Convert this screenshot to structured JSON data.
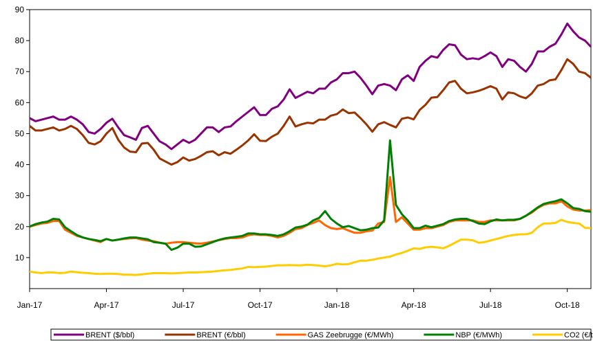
{
  "chart_data": {
    "type": "line",
    "categories": [
      "Jan-17",
      null,
      null,
      null,
      null,
      null,
      null,
      null,
      null,
      null,
      null,
      null,
      null,
      "Apr-17",
      null,
      null,
      null,
      null,
      null,
      null,
      null,
      null,
      null,
      null,
      null,
      null,
      "Jul-17",
      null,
      null,
      null,
      null,
      null,
      null,
      null,
      null,
      null,
      null,
      null,
      null,
      "Oct-17",
      null,
      null,
      null,
      null,
      null,
      null,
      null,
      null,
      null,
      null,
      null,
      null,
      "Jan-18",
      null,
      null,
      null,
      null,
      null,
      null,
      null,
      null,
      null,
      null,
      null,
      null,
      "Apr-18",
      null,
      null,
      null,
      null,
      null,
      null,
      null,
      null,
      null,
      null,
      null,
      null,
      "Jul-18",
      null,
      null,
      null,
      null,
      null,
      null,
      null,
      null,
      null,
      null,
      null,
      null,
      "Oct-18",
      null,
      null,
      null,
      null
    ],
    "ylim": [
      0,
      90
    ],
    "yticks": [
      10,
      20,
      30,
      40,
      50,
      60,
      70,
      80,
      90
    ],
    "grid": false,
    "series": [
      {
        "name": "BRENT ($/bbl)",
        "color": "#800080",
        "values": [
          55,
          54,
          54.5,
          55,
          55.5,
          54.5,
          54.5,
          55.5,
          54.5,
          53,
          50.5,
          50,
          51.5,
          53.5,
          54.8,
          52,
          49.5,
          48.8,
          48,
          51.8,
          52.5,
          50,
          47.5,
          46.5,
          45,
          46.5,
          48,
          47,
          48,
          50,
          52,
          52,
          50.5,
          52,
          52.3,
          54,
          55.5,
          57,
          58.5,
          56,
          56,
          58,
          58.8,
          61,
          64.3,
          61.5,
          62.5,
          63.5,
          63,
          64.5,
          64.5,
          66.5,
          67.5,
          69.5,
          69.5,
          70,
          68,
          65.5,
          62.7,
          65.5,
          66,
          65.5,
          64,
          67.5,
          68.8,
          67,
          71.5,
          73.5,
          75,
          74.5,
          77,
          78.8,
          78.5,
          75.5,
          74,
          74.3,
          74,
          75,
          76.2,
          75,
          71.5,
          74,
          73.5,
          71.5,
          70,
          72.5,
          76.5,
          76.5,
          78,
          79,
          82,
          85.5,
          83,
          81,
          80,
          78
        ]
      },
      {
        "name": "BRENT (€/bbl)",
        "color": "#993300",
        "values": [
          52.5,
          51,
          51,
          51.5,
          52,
          51,
          51.5,
          52.5,
          51.5,
          49.5,
          47,
          46.5,
          47.5,
          50,
          51.8,
          48,
          45.5,
          44.2,
          44,
          46.8,
          47,
          44.8,
          42,
          41,
          40,
          40.8,
          42.3,
          41.3,
          41.8,
          42.8,
          44,
          44.3,
          43,
          44,
          43.5,
          44.8,
          46.2,
          47.8,
          49.8,
          47.7,
          47.6,
          49,
          50,
          52.5,
          55.5,
          52.3,
          53,
          53.5,
          53.3,
          54.5,
          54.5,
          55.8,
          56.3,
          57.8,
          56.6,
          56.8,
          55,
          53,
          50.6,
          53,
          53.7,
          52.8,
          52,
          54.8,
          55.2,
          54.6,
          57.6,
          59.3,
          61.6,
          61.8,
          64,
          66.5,
          67,
          64.5,
          63,
          63.3,
          63.8,
          64.5,
          65.3,
          64.5,
          61,
          63.3,
          63,
          62,
          61.4,
          63,
          65.5,
          66,
          67.2,
          67.5,
          70.5,
          74,
          72.5,
          70,
          69.5,
          68
        ]
      },
      {
        "name": "GAS Zeebrugge (€/MWh)",
        "color": "#ff6600",
        "values": [
          20,
          20.5,
          21,
          21.2,
          21.8,
          21.8,
          19,
          18,
          17,
          16.5,
          16,
          15.5,
          15,
          16,
          15.5,
          15.8,
          16,
          16.2,
          16.3,
          15.8,
          15.5,
          15.3,
          14.8,
          14.5,
          14.8,
          15,
          15,
          14.8,
          14.6,
          14.5,
          14.8,
          15.2,
          15.6,
          16,
          16.3,
          16.3,
          16.5,
          17.2,
          17.5,
          17.3,
          17.3,
          17,
          16.5,
          17,
          18,
          19.2,
          19.5,
          20.5,
          21.2,
          22,
          20.5,
          19.5,
          19.2,
          19.5,
          18.7,
          18,
          18,
          18.5,
          18.7,
          21,
          21.5,
          36,
          21.5,
          23,
          21,
          19,
          19,
          19.5,
          19.5,
          20,
          20.5,
          21.5,
          22,
          22,
          22,
          22,
          21.5,
          21.5,
          22,
          22,
          22,
          22,
          22,
          22.5,
          23.5,
          24.5,
          26,
          27,
          27.5,
          27.5,
          28.2,
          26.5,
          25.5,
          25.2,
          25.2,
          25.3
        ]
      },
      {
        "name": "NBP (€/MWh)",
        "color": "#008000",
        "values": [
          20,
          20.8,
          21.3,
          21.6,
          22.5,
          22.3,
          19.8,
          18.5,
          17.3,
          16.5,
          16,
          15.7,
          15.3,
          16,
          15.5,
          15.8,
          16.2,
          16.5,
          16.5,
          16.2,
          15.9,
          15,
          14.8,
          14.5,
          12.5,
          13.2,
          14.5,
          14.5,
          13.5,
          13.6,
          14.3,
          15,
          15.7,
          16.2,
          16.5,
          16.7,
          17,
          17.8,
          17.8,
          17.5,
          17.5,
          17.3,
          17,
          17.5,
          18.5,
          19.7,
          20,
          20.6,
          22,
          22.8,
          25,
          22.5,
          21,
          19.8,
          20.2,
          19.5,
          18.8,
          19,
          19.5,
          19.7,
          22,
          47.8,
          27,
          24,
          22,
          19.5,
          19.5,
          20.3,
          19.8,
          20.3,
          20.8,
          21.8,
          22.3,
          22.5,
          22.5,
          21.8,
          21,
          20.8,
          21.7,
          22.3,
          22,
          22.2,
          22.2,
          22.5,
          23.5,
          24.8,
          26.2,
          27.3,
          27.8,
          28.2,
          28.8,
          27.5,
          26,
          25.7,
          25,
          24.8
        ]
      },
      {
        "name": "CO2 (€/t)",
        "color": "#ffcc00",
        "values": [
          5.5,
          5.2,
          5,
          5.2,
          5.2,
          5,
          5.1,
          5.5,
          5.3,
          5.1,
          5,
          4.8,
          4.7,
          4.8,
          4.8,
          4.7,
          4.5,
          4.5,
          4.4,
          4.6,
          4.8,
          5,
          5,
          5,
          4.9,
          5,
          5.1,
          5.2,
          5.2,
          5.3,
          5.4,
          5.5,
          5.7,
          5.9,
          6,
          6.3,
          6.5,
          7,
          6.9,
          7,
          7.1,
          7.3,
          7.5,
          7.5,
          7.6,
          7.5,
          7.5,
          7.7,
          7.6,
          7.4,
          7.2,
          7.5,
          8,
          7.8,
          7.9,
          8.5,
          9,
          9,
          9.3,
          9.7,
          10,
          10.3,
          11,
          11.5,
          12.2,
          13,
          12.8,
          13.3,
          13.5,
          13.3,
          13,
          13.8,
          14.8,
          15.8,
          15.8,
          15.6,
          14.8,
          15,
          15.5,
          16,
          16.5,
          17,
          17.3,
          17.5,
          17.5,
          18,
          19.8,
          21,
          21,
          21.2,
          22.2,
          21.5,
          21.2,
          21,
          19.6,
          19.5
        ]
      }
    ]
  }
}
